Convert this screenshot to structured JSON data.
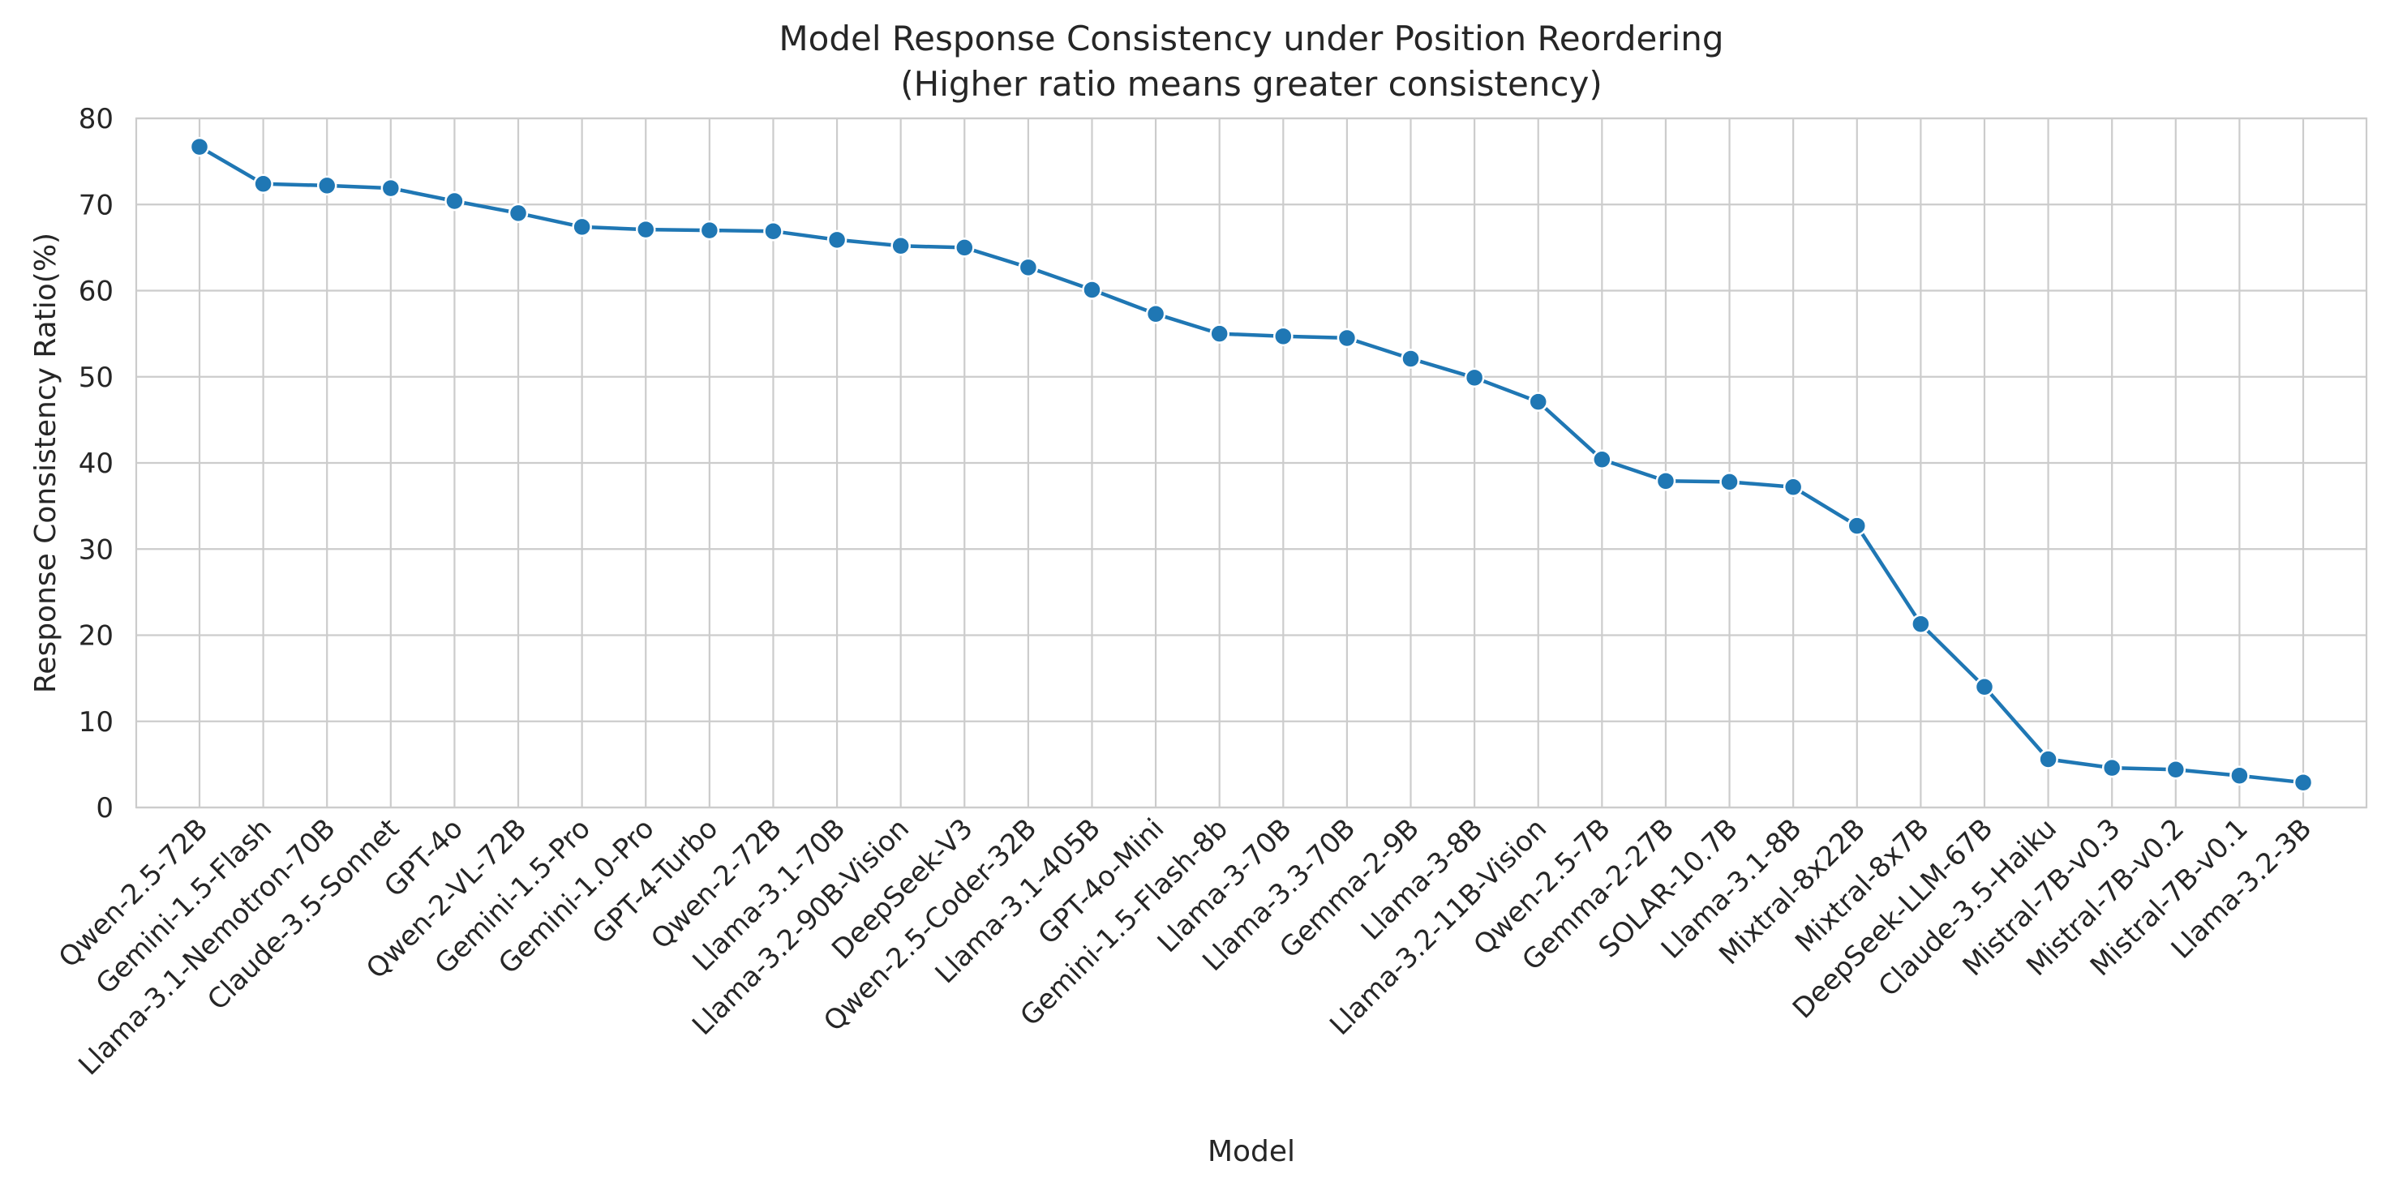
{
  "chart_data": {
    "type": "line",
    "title": "Model Response Consistency under Position Reordering",
    "subtitle": "(Higher ratio means greater consistency)",
    "xlabel": "Model",
    "ylabel": "Response Consistency Ratio(%)",
    "ylim": [
      0,
      80
    ],
    "yticks": [
      0,
      10,
      20,
      30,
      40,
      50,
      60,
      70,
      80
    ],
    "grid": true,
    "legend": "none",
    "series_color": "#1f77b4",
    "categories": [
      "Qwen-2.5-72B",
      "Gemini-1.5-Flash",
      "Llama-3.1-Nemotron-70B",
      "Claude-3.5-Sonnet",
      "GPT-4o",
      "Qwen-2-VL-72B",
      "Gemini-1.5-Pro",
      "Gemini-1.0-Pro",
      "GPT-4-Turbo",
      "Qwen-2-72B",
      "Llama-3.1-70B",
      "Llama-3.2-90B-Vision",
      "DeepSeek-V3",
      "Qwen-2.5-Coder-32B",
      "Llama-3.1-405B",
      "GPT-4o-Mini",
      "Gemini-1.5-Flash-8b",
      "Llama-3-70B",
      "Llama-3.3-70B",
      "Gemma-2-9B",
      "Llama-3-8B",
      "Llama-3.2-11B-Vision",
      "Qwen-2.5-7B",
      "Gemma-2-27B",
      "SOLAR-10.7B",
      "Llama-3.1-8B",
      "Mixtral-8x22B",
      "Mixtral-8x7B",
      "DeepSeek-LLM-67B",
      "Claude-3.5-Haiku",
      "Mistral-7B-v0.3",
      "Mistral-7B-v0.2",
      "Mistral-7B-v0.1",
      "Llama-3.2-3B"
    ],
    "values": [
      76.7,
      72.4,
      72.2,
      71.9,
      70.4,
      69.0,
      67.4,
      67.1,
      67.0,
      66.9,
      65.9,
      65.2,
      65.0,
      62.7,
      60.1,
      57.3,
      55.0,
      54.7,
      54.5,
      52.1,
      49.9,
      47.1,
      40.4,
      37.9,
      37.8,
      37.2,
      32.7,
      21.3,
      14.0,
      5.6,
      4.6,
      4.4,
      3.7,
      2.9
    ]
  }
}
